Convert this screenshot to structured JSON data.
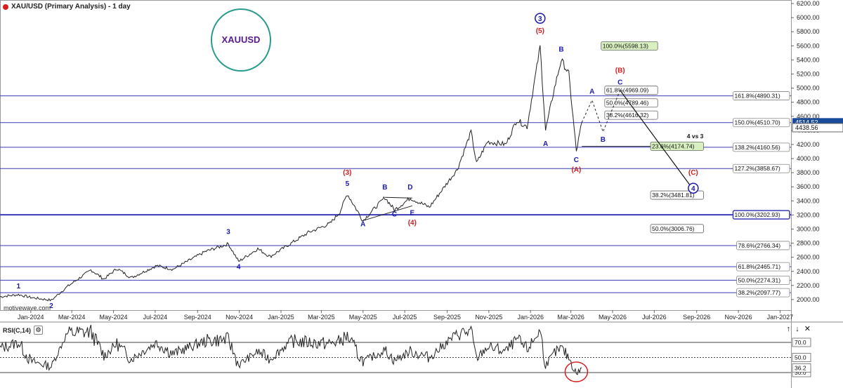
{
  "header": {
    "title": "XAU/USD (Primary Analysis) - 1 day",
    "circle_label": "XAUUSD",
    "watermark": "motivewave.com"
  },
  "rsi_panel": {
    "title": "RSI(C,14)",
    "controls": [
      "↑",
      "↓",
      "✕"
    ]
  },
  "colors": {
    "wave_blue": "#1a1ab0",
    "wave_red": "#d02020",
    "fib_line": "#3a3ab8",
    "circle": "#2a9a8a",
    "xauusd_text": "#5a1a8a",
    "price_tag": "#1a4a9a",
    "green_box": "#d8f0c0"
  },
  "chart_data": {
    "type": "line",
    "title": "XAU/USD (Primary Analysis) - 1 day",
    "x_labels": [
      "Jan-2024",
      "Mar-2024",
      "May-2024",
      "Jul-2024",
      "Sep-2024",
      "Nov-2024",
      "Jan-2025",
      "Mar-2025",
      "May-2025",
      "Jul-2025",
      "Sep-2025",
      "Nov-2025",
      "Jan-2026",
      "Mar-2026",
      "May-2026",
      "Jul-2026",
      "Sep-2026",
      "Nov-2026",
      "Jan-2027"
    ],
    "y_ticks": [
      2000,
      2200,
      2400,
      2600,
      2800,
      3000,
      3200,
      3400,
      3600,
      3800,
      4000,
      4200,
      4400,
      4600,
      4800,
      5000,
      5200,
      5400,
      5600,
      5800,
      6000,
      6200
    ],
    "current_price_labels": [
      "4514.52",
      "4438.56"
    ],
    "price_series": [
      [
        "2023-12-01",
        2040
      ],
      [
        "2023-12-28",
        2070
      ],
      [
        "2024-01-15",
        2030
      ],
      [
        "2024-02-14",
        1990
      ],
      [
        "2024-03-08",
        2180
      ],
      [
        "2024-04-12",
        2420
      ],
      [
        "2024-05-01",
        2290
      ],
      [
        "2024-05-20",
        2440
      ],
      [
        "2024-06-10",
        2310
      ],
      [
        "2024-07-17",
        2480
      ],
      [
        "2024-08-10",
        2430
      ],
      [
        "2024-09-26",
        2680
      ],
      [
        "2024-10-30",
        2790
      ],
      [
        "2024-11-14",
        2540
      ],
      [
        "2024-12-12",
        2720
      ],
      [
        "2024-12-30",
        2610
      ],
      [
        "2025-01-30",
        2800
      ],
      [
        "2025-02-24",
        2950
      ],
      [
        "2025-03-28",
        3080
      ],
      [
        "2025-04-11",
        3240
      ],
      [
        "2025-04-22",
        3500
      ],
      [
        "2025-05-15",
        3120
      ],
      [
        "2025-06-16",
        3450
      ],
      [
        "2025-06-30",
        3270
      ],
      [
        "2025-07-23",
        3440
      ],
      [
        "2025-08-20",
        3310
      ],
      [
        "2025-09-30",
        3850
      ],
      [
        "2025-10-20",
        4380
      ],
      [
        "2025-10-28",
        3930
      ],
      [
        "2025-11-13",
        4240
      ],
      [
        "2025-12-10",
        4200
      ],
      [
        "2025-12-26",
        4550
      ],
      [
        "2026-01-10",
        4450
      ],
      [
        "2026-01-29",
        5590
      ],
      [
        "2026-02-06",
        4400
      ],
      [
        "2026-02-19",
        5000
      ],
      [
        "2026-03-01",
        5400
      ],
      [
        "2026-03-12",
        5200
      ],
      [
        "2026-03-23",
        4100
      ],
      [
        "2026-03-31",
        4514
      ]
    ],
    "projection": [
      [
        "2026-03-31",
        4514
      ],
      [
        "2026-04-15",
        4830
      ],
      [
        "2026-05-01",
        4380
      ],
      [
        "2026-05-26",
        4969
      ]
    ],
    "projection_arrow": [
      [
        "2026-05-26",
        4969
      ],
      [
        "2026-09-10",
        3560
      ]
    ],
    "wave_labels": [
      {
        "text": "1",
        "date": "2023-12-28",
        "price": 2160,
        "color": "blue"
      },
      {
        "text": "2",
        "date": "2024-02-14",
        "price": 1880,
        "color": "blue"
      },
      {
        "text": "3",
        "date": "2024-10-30",
        "price": 2930,
        "color": "blue"
      },
      {
        "text": "4",
        "date": "2024-11-14",
        "price": 2430,
        "color": "blue"
      },
      {
        "text": "5",
        "date": "2025-04-22",
        "price": 3610,
        "color": "blue"
      },
      {
        "text": "(3)",
        "date": "2025-04-22",
        "price": 3770,
        "color": "red"
      },
      {
        "text": "A",
        "date": "2025-05-15",
        "price": 3040,
        "color": "blue"
      },
      {
        "text": "B",
        "date": "2025-06-16",
        "price": 3560,
        "color": "blue"
      },
      {
        "text": "C",
        "date": "2025-06-30",
        "price": 3180,
        "color": "blue"
      },
      {
        "text": "D",
        "date": "2025-07-23",
        "price": 3560,
        "color": "blue"
      },
      {
        "text": "E",
        "date": "2025-07-26",
        "price": 3200,
        "color": "blue"
      },
      {
        "text": "(4)",
        "date": "2025-07-26",
        "price": 3060,
        "color": "red"
      },
      {
        "text": "(5)",
        "date": "2026-01-29",
        "price": 5780,
        "color": "red"
      },
      {
        "text": "A",
        "date": "2026-02-06",
        "price": 4180,
        "color": "blue"
      },
      {
        "text": "B",
        "date": "2026-03-01",
        "price": 5520,
        "color": "blue"
      },
      {
        "text": "C",
        "date": "2026-03-23",
        "price": 3950,
        "color": "blue"
      },
      {
        "text": "(A)",
        "date": "2026-03-23",
        "price": 3810,
        "color": "red"
      },
      {
        "text": "A",
        "date": "2026-04-15",
        "price": 4920,
        "color": "blue"
      },
      {
        "text": "B",
        "date": "2026-05-01",
        "price": 4240,
        "color": "blue"
      },
      {
        "text": "C",
        "date": "2026-05-26",
        "price": 5050,
        "color": "blue"
      },
      {
        "text": "(B)",
        "date": "2026-05-26",
        "price": 5220,
        "color": "red"
      },
      {
        "text": "(C)",
        "date": "2026-09-10",
        "price": 3770,
        "color": "red"
      }
    ],
    "circled_labels": [
      {
        "text": "3",
        "date": "2026-01-29",
        "price": 5990
      },
      {
        "text": "4",
        "date": "2026-09-10",
        "price": 3580
      }
    ],
    "fib_levels": [
      {
        "label": "161.8%(4890.31)",
        "price": 4890.31,
        "start": "2023-12-01",
        "end": "2027-01-31",
        "bold": false
      },
      {
        "label": "150.0%(4510.70)",
        "price": 4510.7,
        "start": "2023-12-01",
        "end": "2027-01-31",
        "bold": false
      },
      {
        "label": "138.2%(4160.56)",
        "price": 4160.56,
        "start": "2023-12-01",
        "end": "2027-01-31",
        "bold": false
      },
      {
        "label": "127.2%(3858.67)",
        "price": 3858.67,
        "start": "2023-12-01",
        "end": "2027-01-31",
        "bold": false
      },
      {
        "label": "100.0%(3202.93)",
        "price": 3202.93,
        "start": "2023-12-01",
        "end": "2027-01-31",
        "bold": true
      },
      {
        "label": "78.6%(2766.34)",
        "price": 2766.34,
        "start": "2023-12-01",
        "end": "2027-01-31",
        "bold": false
      },
      {
        "label": "61.8%(2465.71)",
        "price": 2465.71,
        "start": "2023-12-01",
        "end": "2027-01-31",
        "bold": false
      },
      {
        "label": "50.0%(2274.31)",
        "price": 2274.31,
        "start": "2023-12-01",
        "end": "2027-01-31",
        "bold": false
      },
      {
        "label": "38.2%(2097.77)",
        "price": 2097.77,
        "start": "2023-12-01",
        "end": "2027-01-31",
        "bold": false
      }
    ],
    "short_levels": [
      {
        "label": "100.0%(5598.13)",
        "price": 5598.13,
        "start": "2026-06-05",
        "end": "2026-07-20",
        "green": true
      },
      {
        "label": "61.8%(4969.09)",
        "price": 4969.09,
        "start": "2026-05-26",
        "end": "2026-07-20",
        "green": false
      },
      {
        "label": "50.0%(4789.46)",
        "price": 4789.46,
        "start": "2026-05-26",
        "end": "2026-07-20",
        "green": false
      },
      {
        "label": "38.2%(4616.32)",
        "price": 4616.32,
        "start": "2026-05-26",
        "end": "2026-07-20",
        "green": false
      },
      {
        "label": "23.6%(4174.74)",
        "price": 4174.74,
        "start": "2026-03-31",
        "end": "2026-09-25",
        "green": true
      },
      {
        "label": "38.2%(3481.81)",
        "price": 3481.81,
        "start": "2026-08-10",
        "end": "2026-09-25",
        "green": false
      },
      {
        "label": "50.0%(3006.76)",
        "price": 3006.76,
        "start": "2026-08-10",
        "end": "2026-09-25",
        "green": false
      }
    ],
    "annotation": {
      "text": "4 vs 3",
      "date": "2026-09-25",
      "price": 4290
    },
    "rsi": {
      "levels": [
        70.0,
        50.0,
        30.0
      ],
      "level_labels": [
        "70.0",
        "50.0",
        "30.0"
      ],
      "current_label": "36.2",
      "current": 36.2,
      "series": [
        [
          "2023-12-01",
          62
        ],
        [
          "2023-12-28",
          70
        ],
        [
          "2024-01-15",
          45
        ],
        [
          "2024-02-14",
          38
        ],
        [
          "2024-03-08",
          82
        ],
        [
          "2024-04-12",
          84
        ],
        [
          "2024-05-01",
          52
        ],
        [
          "2024-05-20",
          68
        ],
        [
          "2024-06-10",
          48
        ],
        [
          "2024-07-17",
          70
        ],
        [
          "2024-08-10",
          55
        ],
        [
          "2024-09-26",
          72
        ],
        [
          "2024-10-30",
          74
        ],
        [
          "2024-11-14",
          40
        ],
        [
          "2024-12-12",
          58
        ],
        [
          "2024-12-30",
          48
        ],
        [
          "2025-01-30",
          72
        ],
        [
          "2025-02-24",
          70
        ],
        [
          "2025-03-28",
          68
        ],
        [
          "2025-04-11",
          72
        ],
        [
          "2025-04-22",
          78
        ],
        [
          "2025-05-15",
          44
        ],
        [
          "2025-06-16",
          60
        ],
        [
          "2025-06-30",
          46
        ],
        [
          "2025-07-23",
          58
        ],
        [
          "2025-08-20",
          50
        ],
        [
          "2025-09-30",
          82
        ],
        [
          "2025-10-20",
          84
        ],
        [
          "2025-10-28",
          48
        ],
        [
          "2025-11-13",
          64
        ],
        [
          "2025-12-10",
          58
        ],
        [
          "2025-12-26",
          74
        ],
        [
          "2026-01-10",
          60
        ],
        [
          "2026-01-29",
          86
        ],
        [
          "2026-02-06",
          40
        ],
        [
          "2026-02-19",
          56
        ],
        [
          "2026-03-01",
          62
        ],
        [
          "2026-03-12",
          50
        ],
        [
          "2026-03-23",
          28
        ],
        [
          "2026-03-31",
          36.2
        ]
      ]
    }
  }
}
